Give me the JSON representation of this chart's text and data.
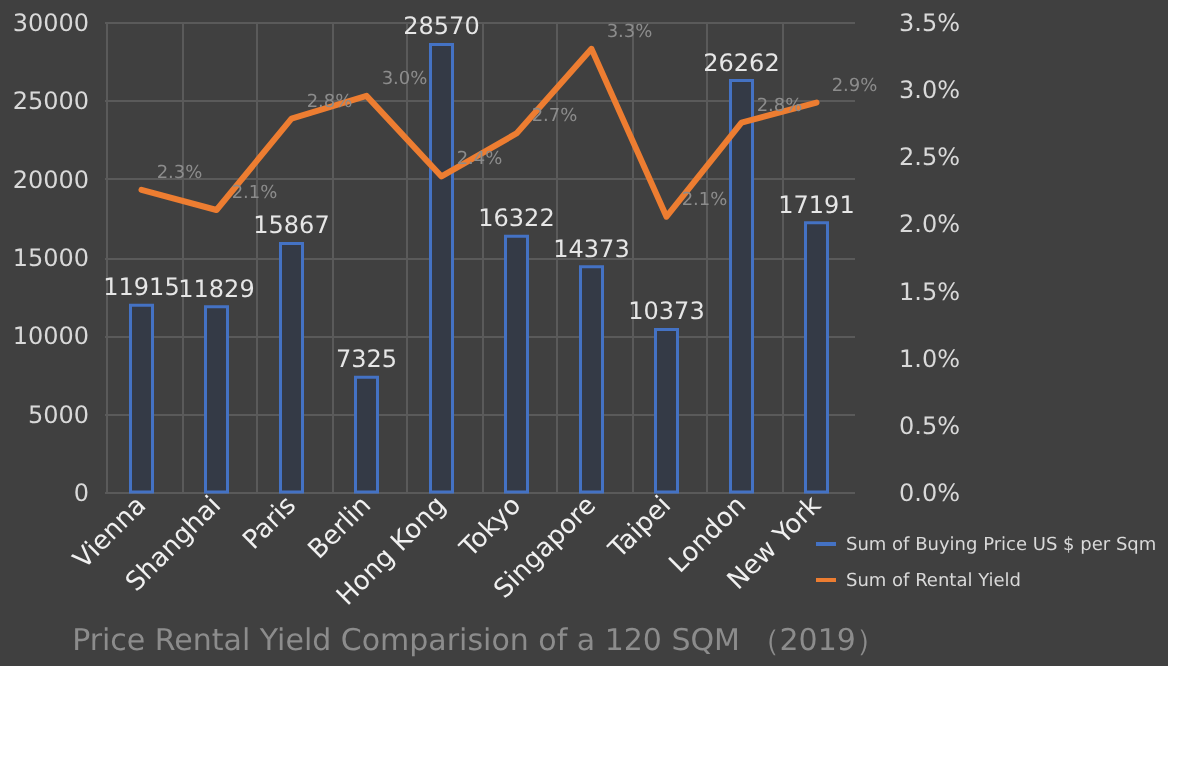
{
  "chart_data": {
    "type": "bar",
    "title": "Price Rental Yield Comparision of a 120 SQM （2019）",
    "categories": [
      "Vienna",
      "Shanghai",
      "Paris",
      "Berlin",
      "Hong Kong",
      "Tokyo",
      "Singapore",
      "Taipei",
      "London",
      "New York"
    ],
    "series": [
      {
        "name": "Sum of Buying Price US $ per Sqm",
        "type": "bar",
        "color": "#4472c4",
        "values": [
          11915,
          11829,
          15867,
          7325,
          28570,
          16322,
          14373,
          10373,
          26262,
          17191
        ],
        "value_labels": [
          "11915",
          "11829",
          "15867",
          "7325",
          "28570",
          "16322",
          "14373",
          "10373",
          "26262",
          "17191"
        ]
      },
      {
        "name": "Sum of Rental Yield",
        "type": "line",
        "axis": "y2",
        "color": "#ed7d31",
        "values": [
          2.25,
          2.1,
          2.78,
          2.95,
          2.35,
          2.67,
          3.3,
          2.05,
          2.75,
          2.9
        ],
        "value_labels": [
          "2.3%",
          "2.1%",
          "2.8%",
          "3.0%",
          "2.4%",
          "2.7%",
          "3.3%",
          "2.1%",
          "2.8%",
          "2.9%"
        ]
      }
    ],
    "ylim": [
      0,
      30000
    ],
    "yticks": [
      0,
      5000,
      10000,
      15000,
      20000,
      25000,
      30000
    ],
    "y2lim": [
      0,
      3.5
    ],
    "y2ticks": [
      {
        "value": 0,
        "label": "0.0%"
      },
      {
        "value": 0.5,
        "label": "0.5%"
      },
      {
        "value": 1,
        "label": "1.0%"
      },
      {
        "value": 1.5,
        "label": "1.5%"
      },
      {
        "value": 2,
        "label": "2.0%"
      },
      {
        "value": 2.5,
        "label": "2.5%"
      },
      {
        "value": 3,
        "label": "3.0%"
      },
      {
        "value": 3.5,
        "label": "3.5%"
      }
    ],
    "grid": true,
    "legend": "bottom right"
  }
}
